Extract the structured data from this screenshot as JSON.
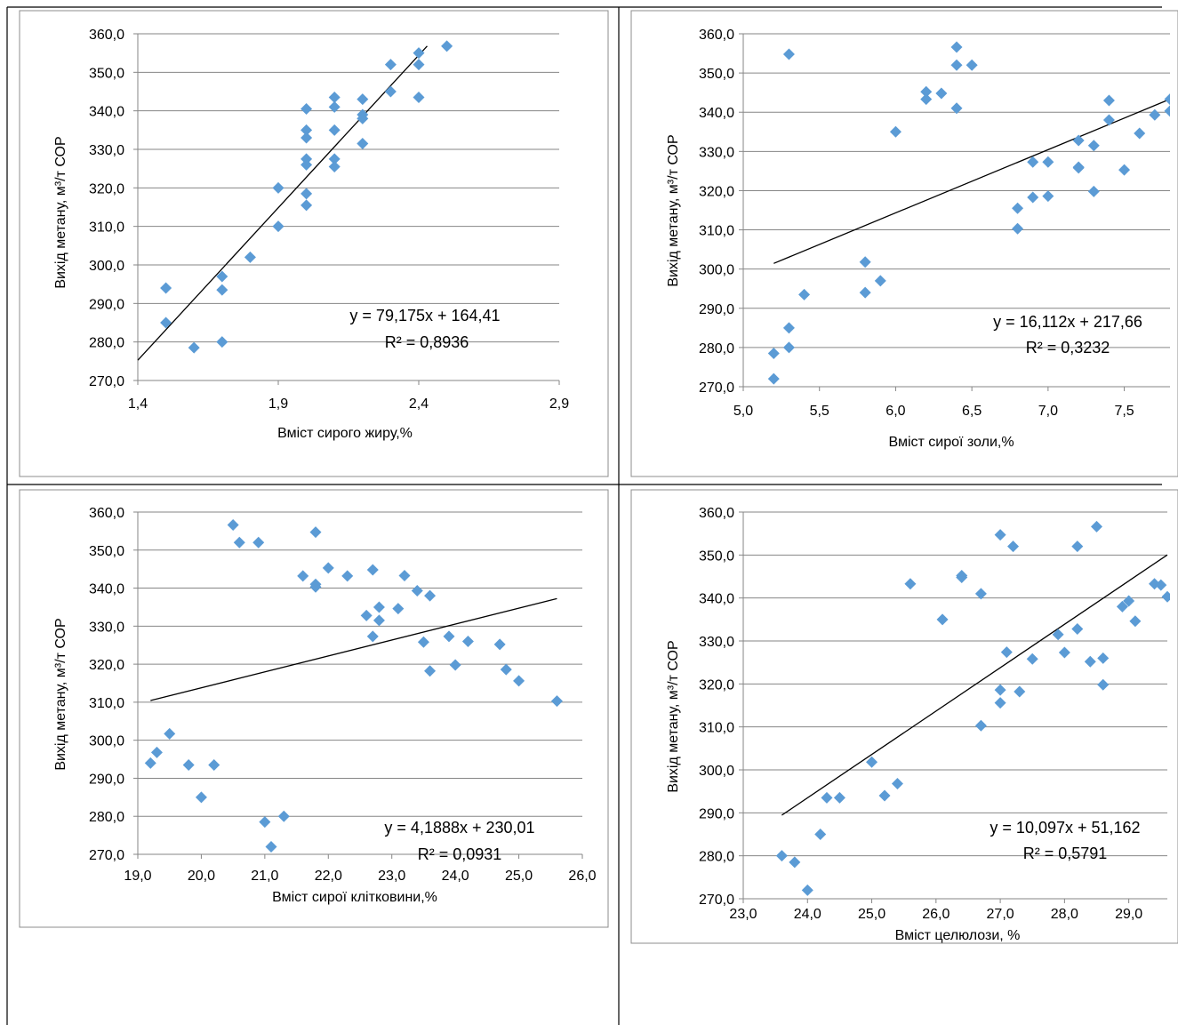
{
  "colors": {
    "marker": "#5b9bd5",
    "trend": "#000000",
    "grid": "#868686",
    "axis": "#868686",
    "frame": "#8c8c8c",
    "separator": "#000000"
  },
  "chart_data": [
    {
      "type": "scatter",
      "ylabel": "Вихід метану, м³/т СОР",
      "xlabel": "Вміст сирого жиру,%",
      "xlim": [
        1.4,
        2.9
      ],
      "ylim": [
        270,
        360
      ],
      "xticks": [
        "1,4",
        "1,9",
        "2,4",
        "2,9"
      ],
      "yticks": [
        "270,0",
        "280,0",
        "290,0",
        "300,0",
        "310,0",
        "320,0",
        "330,0",
        "340,0",
        "350,0",
        "360,0"
      ],
      "equation": "y = 79,175x + 164,41",
      "r2": "R² = 0,8936",
      "trendline": {
        "slope": 79.175,
        "intercept": 164.41,
        "x_range": [
          1.4,
          2.43
        ]
      },
      "points": [
        [
          1.5,
          294.0
        ],
        [
          1.5,
          285.0
        ],
        [
          1.6,
          278.5
        ],
        [
          1.7,
          297.0
        ],
        [
          1.7,
          293.5
        ],
        [
          1.7,
          280.0
        ],
        [
          1.8,
          302.0
        ],
        [
          1.9,
          320.0
        ],
        [
          1.9,
          310.0
        ],
        [
          2.0,
          340.5
        ],
        [
          2.0,
          335.0
        ],
        [
          2.0,
          333.0
        ],
        [
          2.0,
          327.5
        ],
        [
          2.0,
          326.0
        ],
        [
          2.0,
          318.5
        ],
        [
          2.0,
          315.5
        ],
        [
          2.1,
          343.5
        ],
        [
          2.1,
          341.0
        ],
        [
          2.1,
          335.0
        ],
        [
          2.1,
          327.5
        ],
        [
          2.1,
          325.5
        ],
        [
          2.2,
          343.0
        ],
        [
          2.2,
          339.0
        ],
        [
          2.2,
          338.0
        ],
        [
          2.2,
          331.5
        ],
        [
          2.3,
          352.0
        ],
        [
          2.3,
          345.0
        ],
        [
          2.4,
          355.0
        ],
        [
          2.4,
          352.0
        ],
        [
          2.4,
          343.5
        ],
        [
          2.5,
          356.8
        ]
      ]
    },
    {
      "type": "scatter",
      "ylabel": "Вихід метану, м³/т СОР",
      "xlabel": "Вміст сирої золи,%",
      "xlim": [
        5.0,
        7.8
      ],
      "ylim": [
        270,
        360
      ],
      "xticks": [
        "5,0",
        "5,5",
        "6,0",
        "6,5",
        "7,0",
        "7,5"
      ],
      "yticks": [
        "270,0",
        "280,0",
        "290,0",
        "300,0",
        "310,0",
        "320,0",
        "330,0",
        "340,0",
        "350,0",
        "360,0"
      ],
      "equation": "y = 16,112x + 217,66",
      "r2": "R² = 0,3232",
      "trendline": {
        "slope": 16.112,
        "intercept": 217.66,
        "x_range": [
          5.2,
          7.8
        ]
      },
      "points": [
        [
          5.2,
          278.5
        ],
        [
          5.2,
          272.0
        ],
        [
          5.3,
          285.0
        ],
        [
          5.3,
          280.0
        ],
        [
          5.3,
          354.8
        ],
        [
          5.4,
          293.5
        ],
        [
          5.8,
          301.8
        ],
        [
          5.8,
          294.0
        ],
        [
          5.9,
          297.0
        ],
        [
          6.0,
          335.0
        ],
        [
          6.2,
          345.2
        ],
        [
          6.2,
          343.3
        ],
        [
          6.3,
          344.8
        ],
        [
          6.4,
          356.6
        ],
        [
          6.4,
          352.0
        ],
        [
          6.4,
          341.0
        ],
        [
          6.5,
          352.0
        ],
        [
          6.8,
          315.5
        ],
        [
          6.8,
          310.3
        ],
        [
          6.9,
          327.3
        ],
        [
          6.9,
          318.3
        ],
        [
          7.0,
          327.3
        ],
        [
          7.0,
          318.6
        ],
        [
          7.2,
          332.8
        ],
        [
          7.2,
          326.0
        ],
        [
          7.2,
          325.8
        ],
        [
          7.3,
          331.5
        ],
        [
          7.3,
          319.8
        ],
        [
          7.4,
          343.0
        ],
        [
          7.4,
          338.0
        ],
        [
          7.5,
          325.3
        ],
        [
          7.6,
          334.6
        ],
        [
          7.7,
          339.3
        ],
        [
          7.8,
          343.3
        ],
        [
          7.8,
          340.3
        ]
      ]
    },
    {
      "type": "scatter",
      "ylabel": "Вихід метану, м³/т СОР",
      "xlabel": "Вміст сирої клітковини,%",
      "xlim": [
        19.0,
        26.0
      ],
      "ylim": [
        270,
        360
      ],
      "xticks": [
        "19,0",
        "20,0",
        "21,0",
        "22,0",
        "23,0",
        "24,0",
        "25,0",
        "26,0"
      ],
      "yticks": [
        "270,0",
        "280,0",
        "290,0",
        "300,0",
        "310,0",
        "320,0",
        "330,0",
        "340,0",
        "350,0",
        "360,0"
      ],
      "equation": "y = 4,1888x + 230,01",
      "r2": "R² = 0,0931",
      "trendline": {
        "slope": 4.1888,
        "intercept": 230.01,
        "x_range": [
          19.2,
          25.6
        ]
      },
      "points": [
        [
          19.2,
          294.0
        ],
        [
          19.3,
          296.8
        ],
        [
          19.5,
          301.7
        ],
        [
          19.8,
          293.5
        ],
        [
          20.0,
          285.0
        ],
        [
          20.2,
          293.5
        ],
        [
          20.5,
          356.6
        ],
        [
          20.6,
          352.0
        ],
        [
          20.9,
          352.0
        ],
        [
          21.0,
          278.5
        ],
        [
          21.1,
          272.0
        ],
        [
          21.3,
          280.0
        ],
        [
          21.6,
          343.2
        ],
        [
          21.8,
          354.7
        ],
        [
          21.8,
          341.0
        ],
        [
          21.8,
          340.3
        ],
        [
          22.0,
          345.3
        ],
        [
          22.3,
          343.2
        ],
        [
          22.6,
          332.8
        ],
        [
          22.7,
          344.8
        ],
        [
          22.7,
          327.3
        ],
        [
          22.8,
          335.0
        ],
        [
          22.8,
          331.5
        ],
        [
          23.1,
          334.6
        ],
        [
          23.2,
          343.3
        ],
        [
          23.4,
          339.3
        ],
        [
          23.5,
          325.8
        ],
        [
          23.6,
          338.0
        ],
        [
          23.6,
          318.2
        ],
        [
          23.9,
          327.3
        ],
        [
          24.0,
          319.8
        ],
        [
          24.2,
          326.0
        ],
        [
          24.7,
          325.2
        ],
        [
          24.8,
          318.6
        ],
        [
          25.0,
          315.6
        ],
        [
          25.6,
          310.3
        ]
      ]
    },
    {
      "type": "scatter",
      "ylabel": "Вихід метану, м³/т СОР",
      "xlabel": "Вміст целюлози, %",
      "xlim": [
        23.0,
        29.6
      ],
      "ylim": [
        270,
        360
      ],
      "xticks": [
        "23,0",
        "24,0",
        "25,0",
        "26,0",
        "27,0",
        "28,0",
        "29,0",
        "3"
      ],
      "yticks": [
        "270,0",
        "280,0",
        "290,0",
        "300,0",
        "310,0",
        "320,0",
        "330,0",
        "340,0",
        "350,0",
        "360,0"
      ],
      "equation": "y = 10,097x + 51,162",
      "r2": "R² = 0,5791",
      "trendline": {
        "slope": 10.097,
        "intercept": 51.162,
        "x_range": [
          23.6,
          29.6
        ]
      },
      "points": [
        [
          23.6,
          280.0
        ],
        [
          23.8,
          278.5
        ],
        [
          24.0,
          272.0
        ],
        [
          24.2,
          285.0
        ],
        [
          24.3,
          293.5
        ],
        [
          24.5,
          293.5
        ],
        [
          25.0,
          301.8
        ],
        [
          25.2,
          294.0
        ],
        [
          25.4,
          296.8
        ],
        [
          25.6,
          343.3
        ],
        [
          26.1,
          335.0
        ],
        [
          26.4,
          345.2
        ],
        [
          26.4,
          344.8
        ],
        [
          26.7,
          341.0
        ],
        [
          26.7,
          310.3
        ],
        [
          27.0,
          354.7
        ],
        [
          27.0,
          318.6
        ],
        [
          27.0,
          315.6
        ],
        [
          27.1,
          327.4
        ],
        [
          27.2,
          352.0
        ],
        [
          27.3,
          318.2
        ],
        [
          27.5,
          325.8
        ],
        [
          27.9,
          331.5
        ],
        [
          28.0,
          327.3
        ],
        [
          28.2,
          352.0
        ],
        [
          28.2,
          332.8
        ],
        [
          28.4,
          325.2
        ],
        [
          28.5,
          356.6
        ],
        [
          28.6,
          326.0
        ],
        [
          28.6,
          319.8
        ],
        [
          28.9,
          338.0
        ],
        [
          29.0,
          339.3
        ],
        [
          29.1,
          334.6
        ],
        [
          29.4,
          343.3
        ],
        [
          29.5,
          343.0
        ],
        [
          29.6,
          340.3
        ]
      ]
    }
  ]
}
